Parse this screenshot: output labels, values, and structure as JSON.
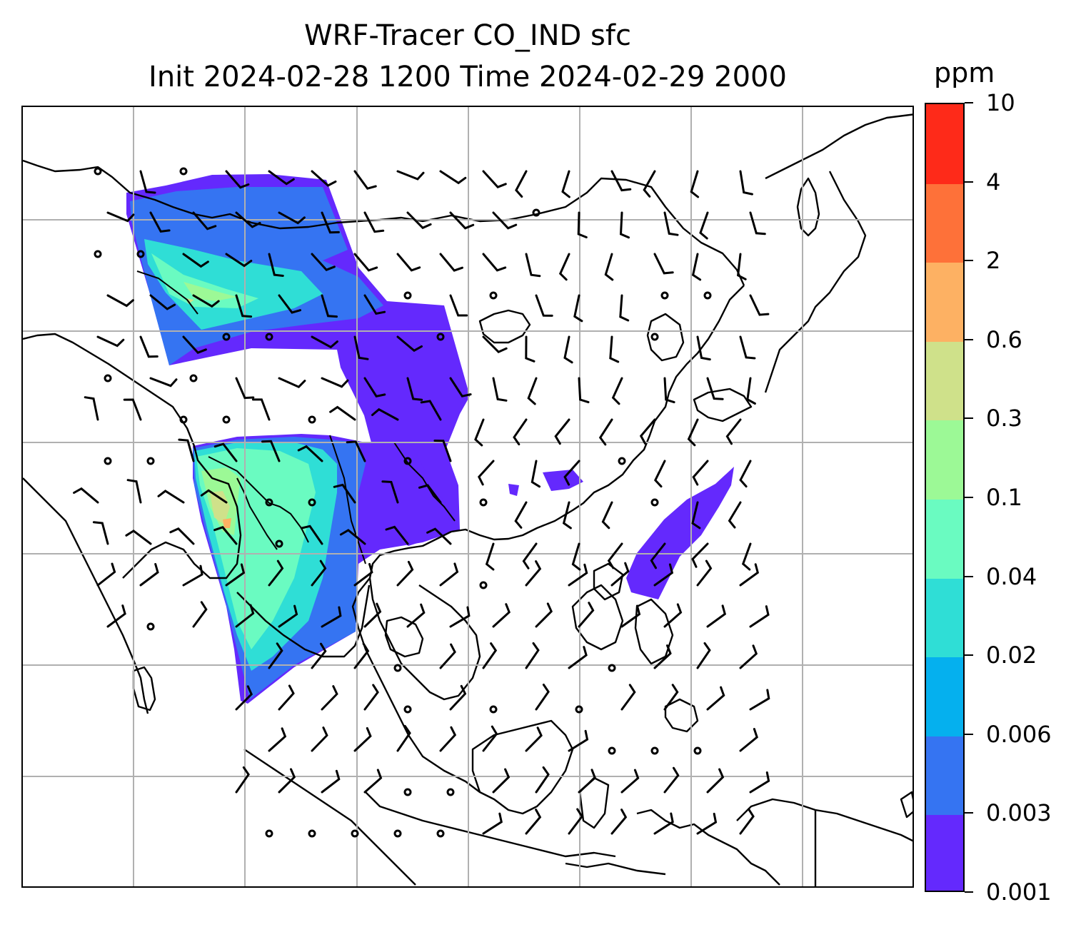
{
  "title": {
    "line1": "WRF-Tracer CO_IND sfc",
    "line2": "Init 2024-02-28 1200 Time 2024-02-29 2000"
  },
  "colorbar": {
    "unit": "ppm",
    "levels": [
      {
        "label": "0.001",
        "color": "#6429fd"
      },
      {
        "label": "0.003",
        "color": "#3574f2"
      },
      {
        "label": "0.006",
        "color": "#05b0ee"
      },
      {
        "label": "0.02",
        "color": "#2fded6"
      },
      {
        "label": "0.04",
        "color": "#6afbc1"
      },
      {
        "label": "0.1",
        "color": "#9cf996"
      },
      {
        "label": "0.3",
        "color": "#cfe18a"
      },
      {
        "label": "0.6",
        "color": "#fdb163"
      },
      {
        "label": "2",
        "color": "#fe7139"
      },
      {
        "label": "4",
        "color": "#fe2a19"
      },
      {
        "label": "10",
        "color": null
      }
    ]
  },
  "map": {
    "gridlines": "on",
    "gridline_color": "#b0b0b0",
    "coastline_color": "#000000",
    "wind_barb_color": "#000000",
    "layers": [
      "coastlines",
      "country-borders",
      "CO_IND-concentration-fill",
      "wind-barbs",
      "gridlines"
    ]
  }
}
